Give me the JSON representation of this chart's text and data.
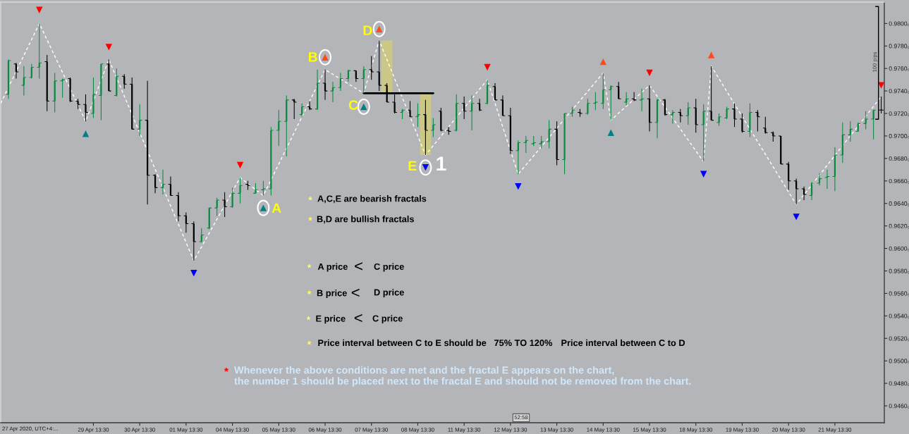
{
  "chart_data": {
    "type": "candlestick",
    "categories": [
      null,
      null,
      null,
      null,
      null,
      null,
      null,
      null,
      null,
      null,
      null,
      null,
      "29 Apr 13:30",
      null,
      null,
      null,
      null,
      null,
      "30 Apr 13:30",
      null,
      null,
      null,
      null,
      null,
      "01 May 13:30",
      null,
      null,
      null,
      null,
      null,
      "04 May 13:30",
      null,
      null,
      null,
      null,
      null,
      "05 May 13:30",
      null,
      null,
      null,
      null,
      null,
      "06 May 13:30",
      null,
      null,
      null,
      null,
      null,
      "07 May 13:30",
      null,
      null,
      null,
      null,
      null,
      "08 May 13:30",
      null,
      null,
      null,
      null,
      null,
      "11 May 13:30",
      null,
      null,
      null,
      null,
      null,
      "12 May 13:30",
      null,
      null,
      null,
      null,
      null,
      "13 May 13:30",
      null,
      null,
      null,
      null,
      null,
      "14 May 13:30",
      null,
      null,
      null,
      null,
      null,
      "15 May 13:30",
      null,
      null,
      null,
      null,
      null,
      "18 May 13:30",
      null,
      null,
      null,
      null,
      null,
      "19 May 13:30",
      null,
      null,
      null,
      null,
      null,
      "20 May 13:30",
      null,
      null,
      null,
      null,
      null,
      "21 May 13:30",
      null,
      null,
      null,
      null,
      null,
      null
    ],
    "ohlc": [
      null,
      [
        0.9737,
        0.9768,
        0.9733,
        0.9767
      ],
      [
        0.9764,
        0.9765,
        0.9751,
        0.9757
      ],
      [
        0.9745,
        0.9762,
        0.9736,
        0.9752
      ],
      [
        0.9752,
        0.9764,
        0.9751,
        0.9761
      ],
      [
        0.9761,
        0.98,
        0.9751,
        0.9765
      ],
      [
        0.9766,
        0.9772,
        0.9722,
        0.9731
      ],
      [
        0.9731,
        0.9756,
        0.9721,
        0.9749
      ],
      [
        0.9749,
        0.9751,
        0.9734,
        0.975
      ],
      [
        0.9751,
        0.9752,
        0.973,
        0.9731
      ],
      [
        0.9731,
        0.9733,
        0.9724,
        0.9728
      ],
      [
        0.9728,
        0.9737,
        0.9713,
        0.9721
      ],
      [
        0.972,
        0.9752,
        0.9716,
        0.9737
      ],
      [
        0.9736,
        0.9764,
        0.9714,
        0.9764
      ],
      [
        0.9764,
        0.9768,
        0.974,
        0.974
      ],
      [
        0.9736,
        0.976,
        0.9735,
        0.9753
      ],
      [
        0.9753,
        0.9755,
        0.9742,
        0.9746
      ],
      [
        0.9746,
        0.9752,
        0.9706,
        0.9706
      ],
      [
        0.9706,
        0.9728,
        0.97,
        0.9714
      ],
      [
        0.9714,
        0.9749,
        0.9639,
        0.9665
      ],
      [
        0.9665,
        0.9666,
        0.9649,
        0.9654
      ],
      [
        0.9654,
        0.967,
        0.9648,
        0.9657
      ],
      [
        0.9657,
        0.9664,
        0.9647,
        0.9647
      ],
      [
        0.9647,
        0.965,
        0.9624,
        0.9629
      ],
      [
        0.9629,
        0.9632,
        0.9614,
        0.9622
      ],
      [
        0.9622,
        0.9624,
        0.9589,
        0.9606
      ],
      [
        0.9606,
        0.9618,
        0.9605,
        0.9612
      ],
      [
        0.9618,
        0.9636,
        0.9617,
        0.9636
      ],
      [
        0.9636,
        0.9645,
        0.9629,
        0.9643
      ],
      [
        0.9643,
        0.965,
        0.9628,
        0.9637
      ],
      [
        0.9637,
        0.9654,
        0.9636,
        0.9649
      ],
      [
        0.9649,
        0.9663,
        0.964,
        0.9656
      ],
      [
        0.9657,
        0.966,
        0.9652,
        0.9656
      ],
      [
        0.9649,
        0.9658,
        0.9649,
        0.9652
      ],
      [
        0.9652,
        0.966,
        0.9647,
        0.9653
      ],
      [
        0.9653,
        0.9708,
        0.9647,
        0.9705
      ],
      [
        0.9705,
        0.9723,
        0.9691,
        0.9713
      ],
      [
        0.9713,
        0.9736,
        0.9682,
        0.9732
      ],
      [
        0.9732,
        0.9733,
        0.9715,
        0.973
      ],
      [
        0.9719,
        0.9729,
        0.9717,
        0.9726
      ],
      [
        0.9726,
        0.9731,
        0.9723,
        0.9724
      ],
      [
        0.9724,
        0.9759,
        0.9723,
        0.9747
      ],
      [
        0.9747,
        0.9759,
        0.9732,
        0.974
      ],
      [
        0.974,
        0.9748,
        0.973,
        0.9743
      ],
      [
        0.9743,
        0.9756,
        0.974,
        0.9751
      ],
      [
        0.9751,
        0.9759,
        0.9748,
        0.9758
      ],
      [
        0.9758,
        0.9758,
        0.9748,
        0.9751
      ],
      [
        0.9751,
        0.9762,
        0.9738,
        0.9759
      ],
      [
        0.9759,
        0.9771,
        0.975,
        0.9757
      ],
      [
        0.9757,
        0.9785,
        0.974,
        0.9745
      ],
      [
        0.9745,
        0.9747,
        0.973,
        0.973
      ],
      [
        0.973,
        0.9737,
        0.972,
        0.9721
      ],
      [
        0.9721,
        0.9724,
        0.9715,
        0.9723
      ],
      [
        0.9723,
        0.9731,
        0.9717,
        0.9717
      ],
      [
        0.9717,
        0.9729,
        0.9708,
        0.9719
      ],
      [
        0.9719,
        0.9732,
        0.9683,
        0.9705
      ],
      [
        0.9705,
        0.9716,
        0.9699,
        0.971
      ],
      [
        0.9722,
        0.9725,
        0.9704,
        0.9705
      ],
      [
        0.9705,
        0.9708,
        0.9701,
        0.9704
      ],
      [
        0.9705,
        0.9737,
        0.9704,
        0.9729
      ],
      [
        0.9729,
        0.9735,
        0.9715,
        0.9722
      ],
      [
        0.9722,
        0.9736,
        0.9705,
        0.9729
      ],
      [
        0.9729,
        0.9733,
        0.9722,
        0.9723
      ],
      [
        0.9729,
        0.975,
        0.9728,
        0.9745
      ],
      [
        0.9744,
        0.9747,
        0.9732,
        0.9732
      ],
      [
        0.9732,
        0.9736,
        0.9718,
        0.9718
      ],
      [
        0.9718,
        0.9725,
        0.9684,
        0.9687
      ],
      [
        0.9687,
        0.9696,
        0.9666,
        0.9694
      ],
      [
        0.9694,
        0.97,
        0.9685,
        0.9696
      ],
      [
        0.9693,
        0.97,
        0.9691,
        0.9694
      ],
      [
        0.9693,
        0.97,
        0.9689,
        0.9695
      ],
      [
        0.9695,
        0.9714,
        0.9689,
        0.9706
      ],
      [
        0.9706,
        0.9713,
        0.9674,
        0.9679
      ],
      [
        0.9679,
        0.972,
        0.9666,
        0.972
      ],
      [
        0.972,
        0.9726,
        0.9717,
        0.9723
      ],
      [
        0.9721,
        0.9724,
        0.9717,
        0.972
      ],
      [
        0.972,
        0.9733,
        0.9719,
        0.9729
      ],
      [
        0.9729,
        0.9739,
        0.9723,
        0.973
      ],
      [
        0.9729,
        0.9756,
        0.9724,
        0.9741
      ],
      [
        0.9741,
        0.9745,
        0.9714,
        0.9744
      ],
      [
        0.9744,
        0.9748,
        0.9733,
        0.9733
      ],
      [
        0.973,
        0.9739,
        0.9727,
        0.9733
      ],
      [
        0.9733,
        0.9739,
        0.9731,
        0.9732
      ],
      [
        0.9732,
        0.9742,
        0.9722,
        0.9733
      ],
      [
        0.9733,
        0.9745,
        0.9704,
        0.9712
      ],
      [
        0.9712,
        0.9733,
        0.9698,
        0.9732
      ],
      [
        0.9732,
        0.9733,
        0.9718,
        0.9719
      ],
      [
        0.9719,
        0.9723,
        0.9711,
        0.9721
      ],
      [
        0.9721,
        0.9724,
        0.9712,
        0.9718
      ],
      [
        0.9718,
        0.973,
        0.971,
        0.9725
      ],
      [
        0.9725,
        0.9733,
        0.9703,
        0.971
      ],
      [
        0.971,
        0.9728,
        0.9677,
        0.9722
      ],
      [
        0.9722,
        0.9762,
        0.9714,
        0.9714
      ],
      [
        0.9712,
        0.972,
        0.9709,
        0.9717
      ],
      [
        0.9716,
        0.9726,
        0.9715,
        0.9724
      ],
      [
        0.9724,
        0.9729,
        0.9708,
        0.9715
      ],
      [
        0.9715,
        0.972,
        0.9703,
        0.9704
      ],
      [
        0.9704,
        0.9729,
        0.9699,
        0.9721
      ],
      [
        0.9721,
        0.9723,
        0.9704,
        0.9717
      ],
      [
        0.9707,
        0.9717,
        0.9702,
        0.9703
      ],
      [
        0.9703,
        0.9704,
        0.9695,
        0.97
      ],
      [
        0.97,
        0.97,
        0.9675,
        0.9675
      ],
      [
        0.9675,
        0.9677,
        0.9652,
        0.966
      ],
      [
        0.966,
        0.9662,
        0.9639,
        0.9653
      ],
      [
        0.9653,
        0.9655,
        0.9643,
        0.9648
      ],
      [
        0.9647,
        0.9659,
        0.9643,
        0.9658
      ],
      [
        0.9658,
        0.9667,
        0.9656,
        0.9662
      ],
      [
        0.9663,
        0.967,
        0.9653,
        0.9664
      ],
      [
        0.9664,
        0.969,
        0.9651,
        0.9683
      ],
      [
        0.9683,
        0.9712,
        0.9676,
        0.9701
      ],
      [
        0.9701,
        0.9713,
        0.9695,
        0.9706
      ],
      [
        0.9704,
        0.9712,
        0.9704,
        0.9711
      ],
      [
        0.9711,
        0.9722,
        0.9706,
        0.9715
      ],
      [
        0.9715,
        0.9723,
        0.9697,
        0.9723
      ],
      [
        0.9723,
        0.9735,
        0.972,
        0.9723
      ]
    ],
    "colors": [
      null,
      "#078a3d",
      "#000000",
      "#078a3d",
      "#078a3d",
      "#078a3d",
      "#000000",
      "#078a3d",
      "#078a3d",
      "#000000",
      "#000000",
      "#000000",
      "#078a3d",
      "#078a3d",
      "#000000",
      "#078a3d",
      "#000000",
      "#000000",
      "#078a3d",
      "#000000",
      "#000000",
      "#078a3d",
      "#000000",
      "#000000",
      "#000000",
      "#000000",
      "#078a3d",
      "#078a3d",
      "#078a3d",
      "#000000",
      "#078a3d",
      "#078a3d",
      "#000000",
      "#078a3d",
      "#078a3d",
      "#078a3d",
      "#078a3d",
      "#078a3d",
      "#000000",
      "#078a3d",
      "#000000",
      "#078a3d",
      "#000000",
      "#078a3d",
      "#078a3d",
      "#078a3d",
      "#000000",
      "#078a3d",
      "#000000",
      "#000000",
      "#000000",
      "#000000",
      "#078a3d",
      "#000000",
      "#078a3d",
      "#000000",
      "#078a3d",
      "#000000",
      "#000000",
      "#078a3d",
      "#000000",
      "#078a3d",
      "#000000",
      "#078a3d",
      "#000000",
      "#000000",
      "#000000",
      "#078a3d",
      "#078a3d",
      "#078a3d",
      "#078a3d",
      "#078a3d",
      "#000000",
      "#078a3d",
      "#078a3d",
      "#000000",
      "#078a3d",
      "#078a3d",
      "#078a3d",
      "#078a3d",
      "#000000",
      "#078a3d",
      "#000000",
      "#078a3d",
      "#000000",
      "#078a3d",
      "#000000",
      "#078a3d",
      "#000000",
      "#078a3d",
      "#000000",
      "#078a3d",
      "#000000",
      "#078a3d",
      "#078a3d",
      "#000000",
      "#000000",
      "#078a3d",
      "#000000",
      "#000000",
      "#000000",
      "#000000",
      "#000000",
      "#000000",
      "#000000",
      "#078a3d",
      "#078a3d",
      "#078a3d",
      "#078a3d",
      "#078a3d",
      "#078a3d",
      "#078a3d",
      "#078a3d",
      "#078a3d",
      "#000000"
    ],
    "series": [
      {
        "type": "bar",
        "color": "#cac884",
        "values": [
          null,
          null,
          null,
          null,
          null,
          null,
          null,
          null,
          null,
          null,
          null,
          null,
          null,
          null,
          null,
          null,
          null,
          null,
          null,
          null,
          null,
          null,
          null,
          null,
          null,
          null,
          null,
          null,
          null,
          null,
          null,
          null,
          null,
          null,
          null,
          null,
          null,
          null,
          null,
          null,
          null,
          null,
          null,
          null,
          null,
          null,
          null,
          null,
          null,
          null,
          0.0046,
          null,
          null,
          null,
          null,
          0.0055,
          null,
          null,
          null,
          null,
          null,
          null,
          null,
          null,
          null,
          null,
          null,
          null,
          null,
          null,
          null,
          null,
          null,
          null,
          null,
          null,
          null,
          null,
          null,
          null,
          null,
          null,
          null,
          null,
          null,
          null,
          null,
          null,
          null,
          null,
          null,
          null,
          null,
          null,
          null,
          null,
          null,
          null,
          null,
          null,
          null,
          null,
          null,
          null,
          null,
          null,
          null,
          null,
          null,
          null,
          null,
          null,
          null,
          null,
          null
        ],
        "base": [
          null,
          null,
          null,
          null,
          null,
          null,
          null,
          null,
          null,
          null,
          null,
          null,
          null,
          null,
          null,
          null,
          null,
          null,
          null,
          null,
          null,
          null,
          null,
          null,
          null,
          null,
          null,
          null,
          null,
          null,
          null,
          null,
          null,
          null,
          null,
          null,
          null,
          null,
          null,
          null,
          null,
          null,
          null,
          null,
          null,
          null,
          null,
          null,
          null,
          null,
          0.9739,
          null,
          null,
          null,
          null,
          0.9683,
          null,
          null,
          null,
          null,
          null,
          null,
          null,
          null,
          null,
          null,
          null,
          null,
          null,
          null,
          null,
          null,
          null,
          null,
          null,
          null,
          null,
          null,
          null,
          null,
          null,
          null,
          null,
          null,
          null,
          null,
          null,
          null,
          null,
          null,
          null,
          null,
          null,
          null,
          null,
          null,
          null,
          null,
          null,
          null,
          null,
          null,
          null,
          null,
          null,
          null,
          null,
          null,
          null,
          null,
          null,
          null,
          null,
          null,
          null
        ]
      },
      {
        "type": "line",
        "color": "#ffffff",
        "line_style": "dashed",
        "values": [
          0.9729,
          null,
          null,
          null,
          null,
          0.98,
          null,
          null,
          null,
          null,
          null,
          0.9713,
          null,
          null,
          0.9768,
          null,
          null,
          null,
          null,
          null,
          null,
          null,
          null,
          null,
          null,
          0.9589,
          null,
          null,
          null,
          null,
          null,
          0.9663,
          null,
          null,
          0.9647,
          null,
          null,
          null,
          null,
          null,
          null,
          null,
          0.9759,
          null,
          null,
          null,
          null,
          0.9738,
          null,
          0.9785,
          null,
          null,
          null,
          null,
          null,
          0.9683,
          null,
          null,
          null,
          null,
          null,
          null,
          null,
          0.975,
          null,
          null,
          null,
          0.9666,
          null,
          null,
          null,
          null,
          null,
          null,
          null,
          null,
          null,
          null,
          0.9756,
          0.9714,
          null,
          null,
          null,
          null,
          0.9745,
          null,
          null,
          null,
          null,
          null,
          null,
          0.9677,
          0.9762,
          null,
          null,
          null,
          null,
          null,
          null,
          null,
          null,
          null,
          null,
          0.9639,
          null,
          null,
          null,
          null,
          null,
          null,
          null,
          null,
          null,
          null,
          0.9735
        ]
      },
      {
        "type": "line",
        "color": "#000000",
        "line_style": "solid",
        "values": [
          null,
          null,
          null,
          null,
          null,
          null,
          null,
          null,
          null,
          null,
          null,
          null,
          null,
          null,
          null,
          null,
          null,
          null,
          null,
          null,
          null,
          null,
          null,
          null,
          null,
          null,
          null,
          null,
          null,
          null,
          null,
          null,
          null,
          null,
          null,
          null,
          null,
          null,
          null,
          null,
          null,
          null,
          null,
          null,
          null,
          null,
          null,
          0.9738,
          0.9738,
          0.9738,
          0.9738,
          0.9738,
          0.9738,
          0.9738,
          0.9738,
          0.9738,
          0.9738,
          null,
          null,
          null,
          null,
          null,
          null,
          null,
          null,
          null,
          null,
          null,
          null,
          null,
          null,
          null,
          null,
          null,
          null,
          null,
          null,
          null,
          null,
          null,
          null,
          null,
          null,
          null,
          null,
          null,
          null,
          null,
          null,
          null,
          null,
          null,
          null,
          null,
          null,
          null,
          null,
          null,
          null,
          null,
          null,
          null,
          null,
          null,
          null,
          null,
          null,
          null,
          null,
          null,
          null,
          null,
          null,
          null,
          null
        ]
      },
      {
        "type": "scatter",
        "color": "#ff0000",
        "marker": "triangle_down",
        "values": [
          null,
          null,
          null,
          null,
          null,
          0.9812,
          null,
          null,
          null,
          null,
          null,
          null,
          null,
          null,
          0.9779,
          null,
          null,
          null,
          null,
          null,
          null,
          null,
          null,
          null,
          null,
          null,
          null,
          null,
          null,
          null,
          null,
          0.9674,
          null,
          null,
          null,
          null,
          null,
          null,
          null,
          null,
          null,
          null,
          null,
          null,
          null,
          null,
          null,
          null,
          null,
          null,
          null,
          null,
          null,
          null,
          null,
          null,
          null,
          null,
          null,
          null,
          null,
          null,
          null,
          0.9761,
          null,
          null,
          null,
          null,
          null,
          null,
          null,
          null,
          null,
          null,
          null,
          null,
          null,
          null,
          null,
          null,
          null,
          null,
          null,
          null,
          0.9756,
          null,
          null,
          null,
          null,
          null,
          null,
          null,
          null,
          null,
          null,
          null,
          null,
          null,
          null,
          null,
          null,
          null,
          null,
          null,
          null,
          null,
          null,
          null,
          null,
          null,
          null,
          null,
          null,
          null,
          0.9745
        ]
      },
      {
        "type": "scatter",
        "color": "#ff4a1c",
        "marker": "triangle",
        "values": [
          null,
          null,
          null,
          null,
          null,
          null,
          null,
          null,
          null,
          null,
          null,
          null,
          null,
          null,
          null,
          null,
          null,
          null,
          null,
          null,
          null,
          null,
          null,
          null,
          null,
          null,
          null,
          null,
          null,
          null,
          null,
          null,
          null,
          null,
          null,
          null,
          null,
          null,
          null,
          null,
          null,
          null,
          0.977,
          null,
          null,
          null,
          null,
          null,
          null,
          0.9795,
          null,
          null,
          null,
          null,
          null,
          null,
          null,
          null,
          null,
          null,
          null,
          null,
          null,
          null,
          null,
          null,
          null,
          null,
          null,
          null,
          null,
          null,
          null,
          null,
          null,
          null,
          null,
          null,
          0.9766,
          null,
          null,
          null,
          null,
          null,
          null,
          null,
          null,
          null,
          null,
          null,
          null,
          null,
          0.9772,
          null,
          null,
          null,
          null,
          null,
          null,
          null,
          null,
          null,
          null,
          null,
          null,
          null,
          null,
          null,
          null,
          null,
          null,
          null,
          null,
          null,
          null
        ]
      },
      {
        "type": "scatter",
        "color": "#008080",
        "marker": "triangle",
        "values": [
          null,
          null,
          null,
          null,
          null,
          null,
          null,
          null,
          null,
          null,
          null,
          0.9702,
          null,
          null,
          null,
          null,
          null,
          null,
          null,
          null,
          null,
          null,
          null,
          null,
          null,
          null,
          null,
          null,
          null,
          null,
          null,
          null,
          null,
          null,
          0.9636,
          null,
          null,
          null,
          null,
          null,
          null,
          null,
          null,
          null,
          null,
          null,
          null,
          0.9726,
          null,
          null,
          null,
          null,
          null,
          null,
          null,
          null,
          null,
          null,
          null,
          null,
          null,
          null,
          null,
          null,
          null,
          null,
          null,
          null,
          null,
          null,
          null,
          null,
          null,
          null,
          null,
          null,
          null,
          null,
          null,
          0.9703,
          null,
          null,
          null,
          null,
          null,
          null,
          null,
          null,
          null,
          null,
          null,
          null,
          null,
          null,
          null,
          null,
          null,
          null,
          null,
          null,
          null,
          null,
          null,
          null,
          null,
          null,
          null,
          null,
          null,
          null,
          null,
          null,
          null,
          null,
          null
        ]
      },
      {
        "type": "scatter",
        "color": "#0000ff",
        "marker": "triangle_down",
        "values": [
          null,
          null,
          null,
          null,
          null,
          null,
          null,
          null,
          null,
          null,
          null,
          null,
          null,
          null,
          null,
          null,
          null,
          null,
          null,
          null,
          null,
          null,
          null,
          null,
          null,
          0.9578,
          null,
          null,
          null,
          null,
          null,
          null,
          null,
          null,
          null,
          null,
          null,
          null,
          null,
          null,
          null,
          null,
          null,
          null,
          null,
          null,
          null,
          null,
          null,
          null,
          null,
          null,
          null,
          null,
          null,
          0.9672,
          null,
          null,
          null,
          null,
          null,
          null,
          null,
          null,
          null,
          null,
          null,
          0.9655,
          null,
          null,
          null,
          null,
          null,
          null,
          null,
          null,
          null,
          null,
          null,
          null,
          null,
          null,
          null,
          null,
          null,
          null,
          null,
          null,
          null,
          null,
          null,
          0.9666,
          null,
          null,
          null,
          null,
          null,
          null,
          null,
          null,
          null,
          null,
          null,
          0.9628,
          null,
          null,
          null,
          null,
          null,
          null,
          null,
          null,
          null,
          null,
          null
        ]
      }
    ],
    "ylim": [
      0.9445,
      0.9819
    ],
    "yticks": [
      {
        "value": 0.946,
        "label": "0.9460₀"
      },
      {
        "value": 0.948,
        "label": "0.9480₀"
      },
      {
        "value": 0.95,
        "label": "0.9500₀"
      },
      {
        "value": 0.952,
        "label": "0.9520₀"
      },
      {
        "value": 0.954,
        "label": "0.9540₀"
      },
      {
        "value": 0.956,
        "label": "0.9560₀"
      },
      {
        "value": 0.958,
        "label": "0.9580₀"
      },
      {
        "value": 0.96,
        "label": "0.9600₀"
      },
      {
        "value": 0.962,
        "label": "0.9620₀"
      },
      {
        "value": 0.964,
        "label": "0.9640₀"
      },
      {
        "value": 0.966,
        "label": "0.9660₀"
      },
      {
        "value": 0.968,
        "label": "0.9680₀"
      },
      {
        "value": 0.97,
        "label": "0.9700₀"
      },
      {
        "value": 0.972,
        "label": "0.9720₀"
      },
      {
        "value": 0.974,
        "label": "0.9740₀"
      },
      {
        "value": 0.976,
        "label": "0.9760₀"
      },
      {
        "value": 0.978,
        "label": "0.9780₀"
      },
      {
        "value": 0.98,
        "label": "0.9800₀"
      }
    ],
    "annotations": [
      "D",
      "B",
      "C",
      "E",
      "1",
      "A",
      "*",
      "A,C,E are bearish fractals",
      "*",
      "B,D are bullish fractals",
      "*",
      "A price",
      "<",
      "C price",
      "*",
      "B price",
      "<",
      "D price",
      "*",
      "E price",
      "<",
      "C price",
      "*",
      "Price interval between C to E should be",
      "75% TO 120%",
      "Price interval between C to D",
      "*",
      "Whenever the above conditions are met and the fractal E appears on the chart,",
      "the number 1 should be placed next to the fractal E and should not be removed from the chart.",
      "100 pips",
      "52:58",
      "27 Apr 2020, UTC+4:..."
    ]
  }
}
